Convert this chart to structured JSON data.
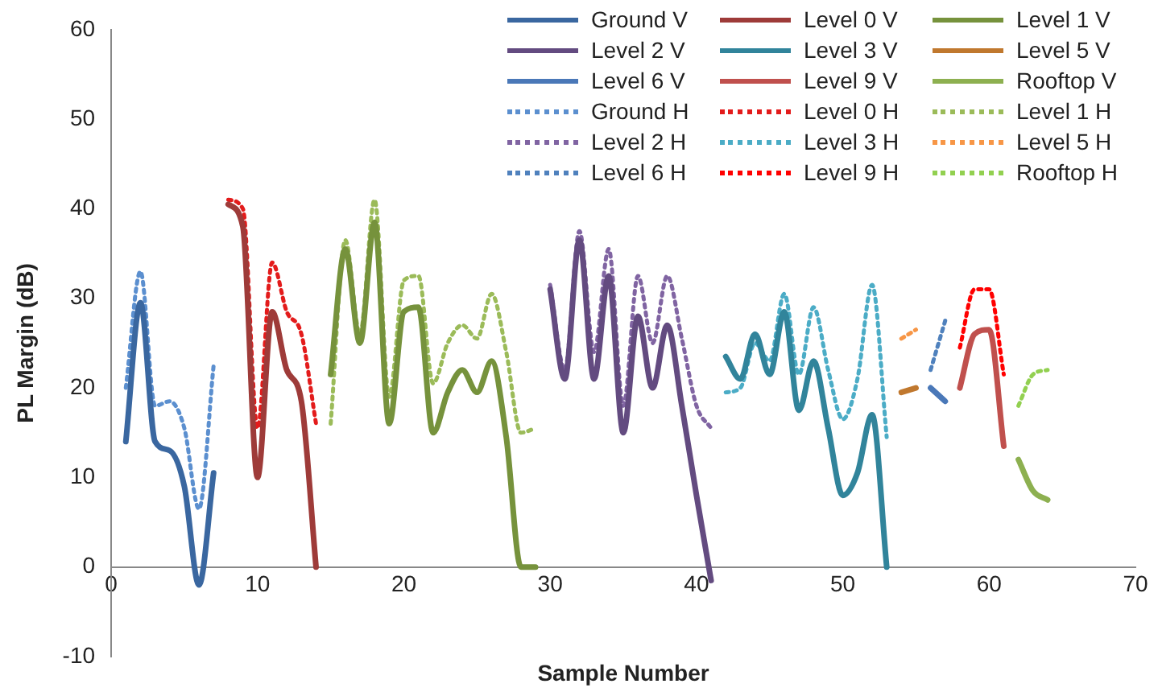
{
  "chart_data": {
    "type": "line",
    "xlabel": "Sample Number",
    "ylabel": "PL Margin (dB)",
    "xlim": [
      0,
      70
    ],
    "xticks": [
      0,
      10,
      20,
      30,
      40,
      50,
      60,
      70
    ],
    "ylim": [
      -10,
      60
    ],
    "yticks": [
      -10,
      0,
      10,
      20,
      30,
      40,
      50,
      60
    ],
    "grid": false,
    "legend": "top right",
    "marker": "none",
    "series": [
      {
        "name": "Ground V",
        "color": "#3a67a0",
        "line_style": "solid",
        "x": [
          1,
          2,
          3,
          4,
          5,
          6,
          7
        ],
        "values": [
          14,
          29.5,
          14,
          13,
          9,
          -2,
          10.5
        ]
      },
      {
        "name": "Level 0 V",
        "color": "#9e3b39",
        "line_style": "solid",
        "x": [
          8,
          9,
          10,
          11,
          12,
          13,
          14
        ],
        "values": [
          40.5,
          38,
          10,
          28.5,
          22,
          18.5,
          0
        ]
      },
      {
        "name": "Level 1 V",
        "color": "#76923c",
        "line_style": "solid",
        "x": [
          15,
          16,
          17,
          18,
          19,
          20,
          21,
          22,
          23,
          24,
          25,
          26,
          27,
          28,
          29
        ],
        "values": [
          21.5,
          35.5,
          25,
          38.5,
          16,
          28.5,
          29,
          15,
          19.5,
          22,
          19.5,
          23,
          14.5,
          0,
          0
        ]
      },
      {
        "name": "Level 2 V",
        "color": "#634b80",
        "line_style": "solid",
        "x": [
          30,
          31,
          32,
          33,
          34,
          35,
          36,
          37,
          38,
          39,
          40,
          41
        ],
        "values": [
          31,
          21,
          36.5,
          21,
          32.5,
          15,
          28,
          20,
          27,
          18,
          8,
          -1.5
        ]
      },
      {
        "name": "Level 3 V",
        "color": "#31849b",
        "line_style": "solid",
        "x": [
          42,
          43,
          44,
          45,
          46,
          47,
          48,
          49,
          50,
          51,
          52,
          53
        ],
        "values": [
          23.5,
          21,
          26,
          21.5,
          28.5,
          17.5,
          23,
          15.5,
          8,
          10.5,
          17,
          0
        ]
      },
      {
        "name": "Level 5 V",
        "color": "#c0782e",
        "line_style": "solid",
        "x": [
          54,
          55
        ],
        "values": [
          19.5,
          20
        ]
      },
      {
        "name": "Level 6 V",
        "color": "#4a78b8",
        "line_style": "solid",
        "x": [
          56,
          57
        ],
        "values": [
          20,
          18.5
        ]
      },
      {
        "name": "Level 9 V",
        "color": "#c0504d",
        "line_style": "solid",
        "x": [
          58,
          59,
          60,
          61
        ],
        "values": [
          20,
          26,
          26.5,
          13.5
        ]
      },
      {
        "name": "Rooftop V",
        "color": "#8db050",
        "line_style": "solid",
        "x": [
          62,
          63,
          64
        ],
        "values": [
          12,
          8.5,
          7.5
        ]
      },
      {
        "name": "Ground H",
        "color": "#5b8fcf",
        "line_style": "dotted",
        "x": [
          1,
          2,
          3,
          4,
          5,
          6,
          7
        ],
        "values": [
          20,
          33,
          18,
          18.5,
          15.5,
          6.5,
          22.5
        ]
      },
      {
        "name": "Level 0 H",
        "color": "#e31b1b",
        "line_style": "dotted",
        "x": [
          8,
          9,
          10,
          11,
          12,
          13,
          14
        ],
        "values": [
          41,
          40,
          15.5,
          34,
          28.5,
          26,
          16
        ]
      },
      {
        "name": "Level 1 H",
        "color": "#9bbb59",
        "line_style": "dotted",
        "x": [
          15,
          16,
          17,
          18,
          19,
          20,
          21,
          22,
          23,
          24,
          25,
          26,
          27,
          28,
          29
        ],
        "values": [
          16,
          36.5,
          26,
          41,
          19,
          32,
          32.5,
          20.5,
          25,
          27,
          25.5,
          30.5,
          24,
          15,
          15.5
        ]
      },
      {
        "name": "Level 2 H",
        "color": "#8064a2",
        "line_style": "dotted",
        "x": [
          30,
          31,
          32,
          33,
          34,
          35,
          36,
          37,
          38,
          39,
          40,
          41
        ],
        "values": [
          31.5,
          22,
          37.5,
          24,
          35.5,
          18,
          32.5,
          25,
          32.5,
          25.5,
          18,
          15.5
        ]
      },
      {
        "name": "Level 3 H",
        "color": "#4bacc6",
        "line_style": "dotted",
        "x": [
          42,
          43,
          44,
          45,
          46,
          47,
          48,
          49,
          50,
          51,
          52,
          53
        ],
        "values": [
          19.5,
          20,
          25,
          23,
          30.5,
          21.5,
          29,
          22,
          16.5,
          21,
          31.5,
          14.5
        ]
      },
      {
        "name": "Level 5 H",
        "color": "#f79646",
        "line_style": "dotted",
        "x": [
          54,
          55
        ],
        "values": [
          25.5,
          26.5
        ]
      },
      {
        "name": "Level 6 H",
        "color": "#4f81bd",
        "line_style": "dotted",
        "x": [
          56,
          57
        ],
        "values": [
          22,
          27.5
        ]
      },
      {
        "name": "Level 9 H",
        "color": "#ff0000",
        "line_style": "dotted",
        "x": [
          58,
          59,
          60,
          61
        ],
        "values": [
          24.5,
          31,
          31,
          21.5
        ]
      },
      {
        "name": "Rooftop H",
        "color": "#92d050",
        "line_style": "dotted",
        "x": [
          62,
          63,
          64
        ],
        "values": [
          18,
          21.5,
          22
        ]
      }
    ]
  }
}
